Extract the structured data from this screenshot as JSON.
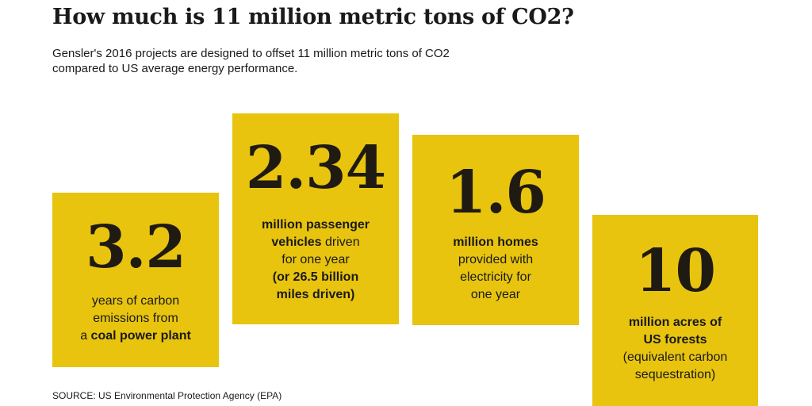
{
  "title": "How much is 11 million metric tons of CO2?",
  "subtitle": "Gensler's 2016 projects are designed to offset 11 million metric tons of CO2 compared to US average energy performance.",
  "colors": {
    "card_background": "#E8C40E",
    "text": "#1a1a1a"
  },
  "cards": [
    {
      "value": "3.2",
      "lines": [
        {
          "text": "years of carbon",
          "bold": ""
        },
        {
          "text": "emissions from",
          "bold": ""
        },
        {
          "text": "a ",
          "bold": "coal power plant"
        }
      ]
    },
    {
      "value": "2.34",
      "lines": [
        {
          "text": "",
          "bold": "million passenger"
        },
        {
          "text": " driven",
          "bold": "vehicles",
          "bold_first": true
        },
        {
          "text": "for one year",
          "bold": ""
        },
        {
          "text": "",
          "bold": "(or 26.5 billion"
        },
        {
          "text": "",
          "bold": "miles driven)"
        }
      ]
    },
    {
      "value": "1.6",
      "lines": [
        {
          "text": "",
          "bold": "million homes"
        },
        {
          "text": "provided with",
          "bold": ""
        },
        {
          "text": "electricity for",
          "bold": ""
        },
        {
          "text": "one year",
          "bold": ""
        }
      ]
    },
    {
      "value": "10",
      "lines": [
        {
          "text": "",
          "bold": "million acres of"
        },
        {
          "text": "",
          "bold": "US forests"
        },
        {
          "text": "(equivalent carbon",
          "bold": ""
        },
        {
          "text": "sequestration)",
          "bold": ""
        }
      ]
    }
  ],
  "source": "SOURCE: US Environmental Protection Agency (EPA)"
}
